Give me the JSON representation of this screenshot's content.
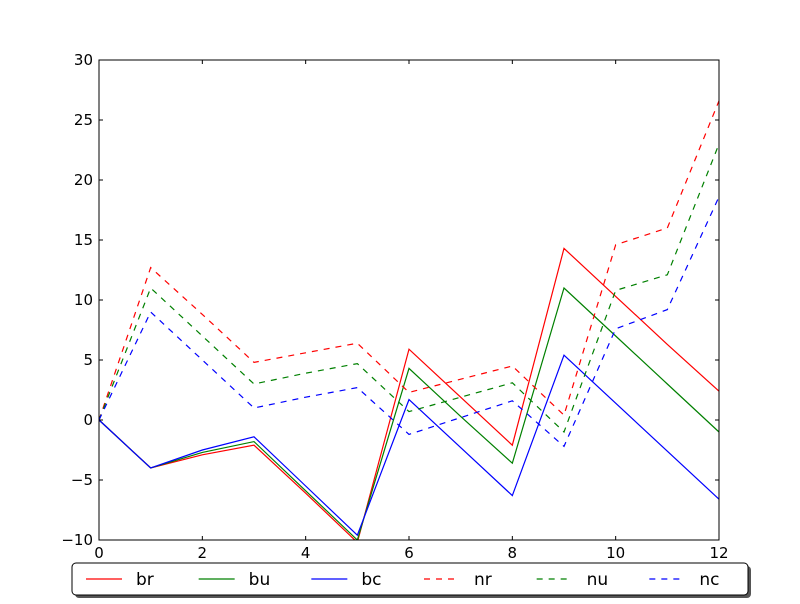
{
  "chart_data": {
    "type": "line",
    "title": "",
    "xlabel": "",
    "ylabel": "",
    "xlim": [
      0,
      12
    ],
    "ylim": [
      -10,
      30
    ],
    "xticks": [
      0,
      2,
      4,
      6,
      8,
      10,
      12
    ],
    "yticks": [
      -10,
      -5,
      0,
      5,
      10,
      15,
      20,
      25,
      30
    ],
    "xtick_labels": [
      "0",
      "2",
      "4",
      "6",
      "8",
      "10",
      "12"
    ],
    "ytick_labels": [
      "−10",
      "−5",
      "0",
      "5",
      "10",
      "15",
      "20",
      "25",
      "30"
    ],
    "grid": false,
    "legend_position": "bottom",
    "x": [
      0,
      1,
      2,
      3,
      4,
      5,
      6,
      7,
      8,
      9,
      10,
      11,
      12
    ],
    "series": [
      {
        "name": "br",
        "color": "#ff0000",
        "dash": "solid",
        "values": [
          0,
          -4.0,
          -2.9,
          -2.1,
          -6.1,
          -10.2,
          5.9,
          1.9,
          -2.1,
          14.3,
          10.3,
          6.3,
          2.4
        ]
      },
      {
        "name": "bu",
        "color": "#008000",
        "dash": "solid",
        "values": [
          0,
          -4.0,
          -2.7,
          -1.8,
          -5.9,
          -10.0,
          4.3,
          0.3,
          -3.6,
          11.0,
          7.0,
          3.0,
          -1.0
        ]
      },
      {
        "name": "bc",
        "color": "#0000ff",
        "dash": "solid",
        "values": [
          0,
          -4.0,
          -2.5,
          -1.4,
          -5.5,
          -9.6,
          1.7,
          -2.3,
          -6.3,
          5.4,
          1.4,
          -2.6,
          -6.6
        ]
      },
      {
        "name": "nr",
        "color": "#ff0000",
        "dash": "dashed",
        "values": [
          0,
          12.7,
          8.8,
          4.8,
          5.6,
          6.4,
          2.3,
          3.4,
          4.5,
          0.4,
          14.6,
          16.0,
          26.6
        ]
      },
      {
        "name": "nu",
        "color": "#008000",
        "dash": "dashed",
        "values": [
          0,
          11.0,
          7.0,
          3.0,
          3.9,
          4.7,
          0.7,
          1.9,
          3.1,
          -1.0,
          10.8,
          12.1,
          23.0
        ]
      },
      {
        "name": "nc",
        "color": "#0000ff",
        "dash": "dashed",
        "values": [
          0,
          9.0,
          5.0,
          1.0,
          1.9,
          2.7,
          -1.2,
          0.2,
          1.6,
          -2.2,
          7.6,
          9.2,
          18.6
        ]
      }
    ]
  }
}
